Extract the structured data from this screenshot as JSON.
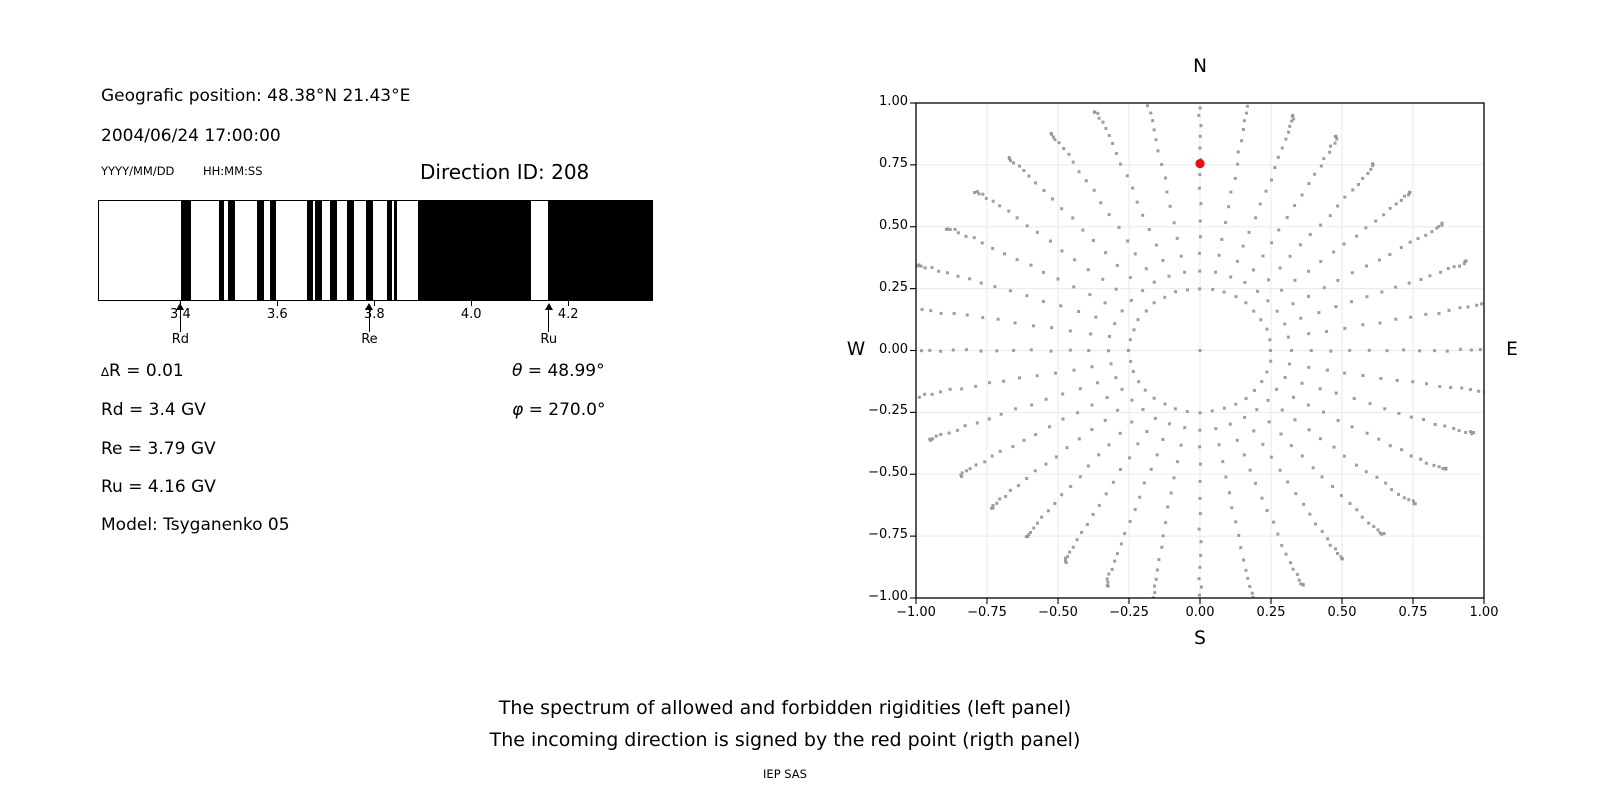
{
  "left_panel": {
    "geo_line": "Geografic position: 48.38°N 21.43°E",
    "datetime": "2004/06/24 17:00:00",
    "date_format_label": "YYYY/MM/DD",
    "time_format_label": "HH:MM:SS",
    "direction_id_label": "Direction ID: 208",
    "barcode": {
      "xlim": [
        3.23,
        4.375
      ],
      "ticks": [
        "3.4",
        "3.6",
        "3.8",
        "4.0",
        "4.2"
      ],
      "tick_values": [
        3.4,
        3.6,
        3.8,
        4.0,
        4.2
      ],
      "bars": [
        [
          3.4,
          3.42
        ],
        [
          3.478,
          3.489
        ],
        [
          3.497,
          3.512
        ],
        [
          3.558,
          3.572
        ],
        [
          3.584,
          3.596
        ],
        [
          3.66,
          3.673
        ],
        [
          3.678,
          3.692
        ],
        [
          3.708,
          3.723
        ],
        [
          3.744,
          3.757
        ],
        [
          3.782,
          3.797
        ],
        [
          3.827,
          3.836
        ],
        [
          3.84,
          3.848
        ],
        [
          3.89,
          4.125
        ],
        [
          4.16,
          4.375
        ]
      ],
      "markers": [
        {
          "label": "Rd",
          "value": 3.4
        },
        {
          "label": "Re",
          "value": 3.79
        },
        {
          "label": "Ru",
          "value": 4.16
        }
      ]
    },
    "params_left": [
      {
        "sym": "∆",
        "rest": "R = 0.01"
      },
      {
        "rest": "Rd = 3.4 GV"
      },
      {
        "rest": "Re = 3.79 GV"
      },
      {
        "rest": "Ru = 4.16 GV"
      },
      {
        "rest": "Model: Tsyganenko 05"
      }
    ],
    "params_right": [
      {
        "sym": "θ",
        "rest": " = 48.99°"
      },
      {
        "sym": "φ",
        "rest": " = 270.0°"
      }
    ]
  },
  "chart_data": {
    "type": "scatter",
    "xlim": [
      -1.0,
      1.0
    ],
    "ylim": [
      -1.0,
      1.0
    ],
    "grid": true,
    "x_tick_values": [
      -1.0,
      -0.75,
      -0.5,
      -0.25,
      0.0,
      0.25,
      0.5,
      0.75,
      1.0
    ],
    "x_tick_labels": [
      "−1.00",
      "−0.75",
      "−0.50",
      "−0.25",
      "0.00",
      "0.25",
      "0.50",
      "0.75",
      "1.00"
    ],
    "y_tick_values": [
      1.0,
      0.75,
      0.5,
      0.25,
      0.0,
      -0.25,
      -0.5,
      -0.75,
      -1.0
    ],
    "y_tick_labels": [
      "1.00",
      "0.75",
      "0.50",
      "0.25",
      "0.00",
      "−0.25",
      "−0.50",
      "−0.75",
      "−1.00"
    ],
    "compass": {
      "north": "N",
      "south": "S",
      "west": "W",
      "east": "E"
    },
    "direction_grid": {
      "spoke_count": 36,
      "spoke_step_deg": 10,
      "r_inner": 0.25,
      "r_outer_base": 0.975,
      "cardinal_boost": 0.09,
      "upper_left_boost": 0.05,
      "dots_per_spoke": 19,
      "tip_swirl_deg": 1.0,
      "dot_color": "#949494",
      "dot_size_px": 3,
      "center_dot": [
        0,
        0
      ]
    },
    "red_point": {
      "x": 0.0,
      "y": 0.755,
      "color": "#ea1010",
      "radius_px": 4.6
    },
    "grid_color": "#eaeaea"
  },
  "footer": {
    "caption_line1": "The spectrum of allowed and forbidden rigidities (left panel)",
    "caption_line2": "The incoming direction is signed by the red point (rigth panel)",
    "credit": "IEP SAS"
  }
}
